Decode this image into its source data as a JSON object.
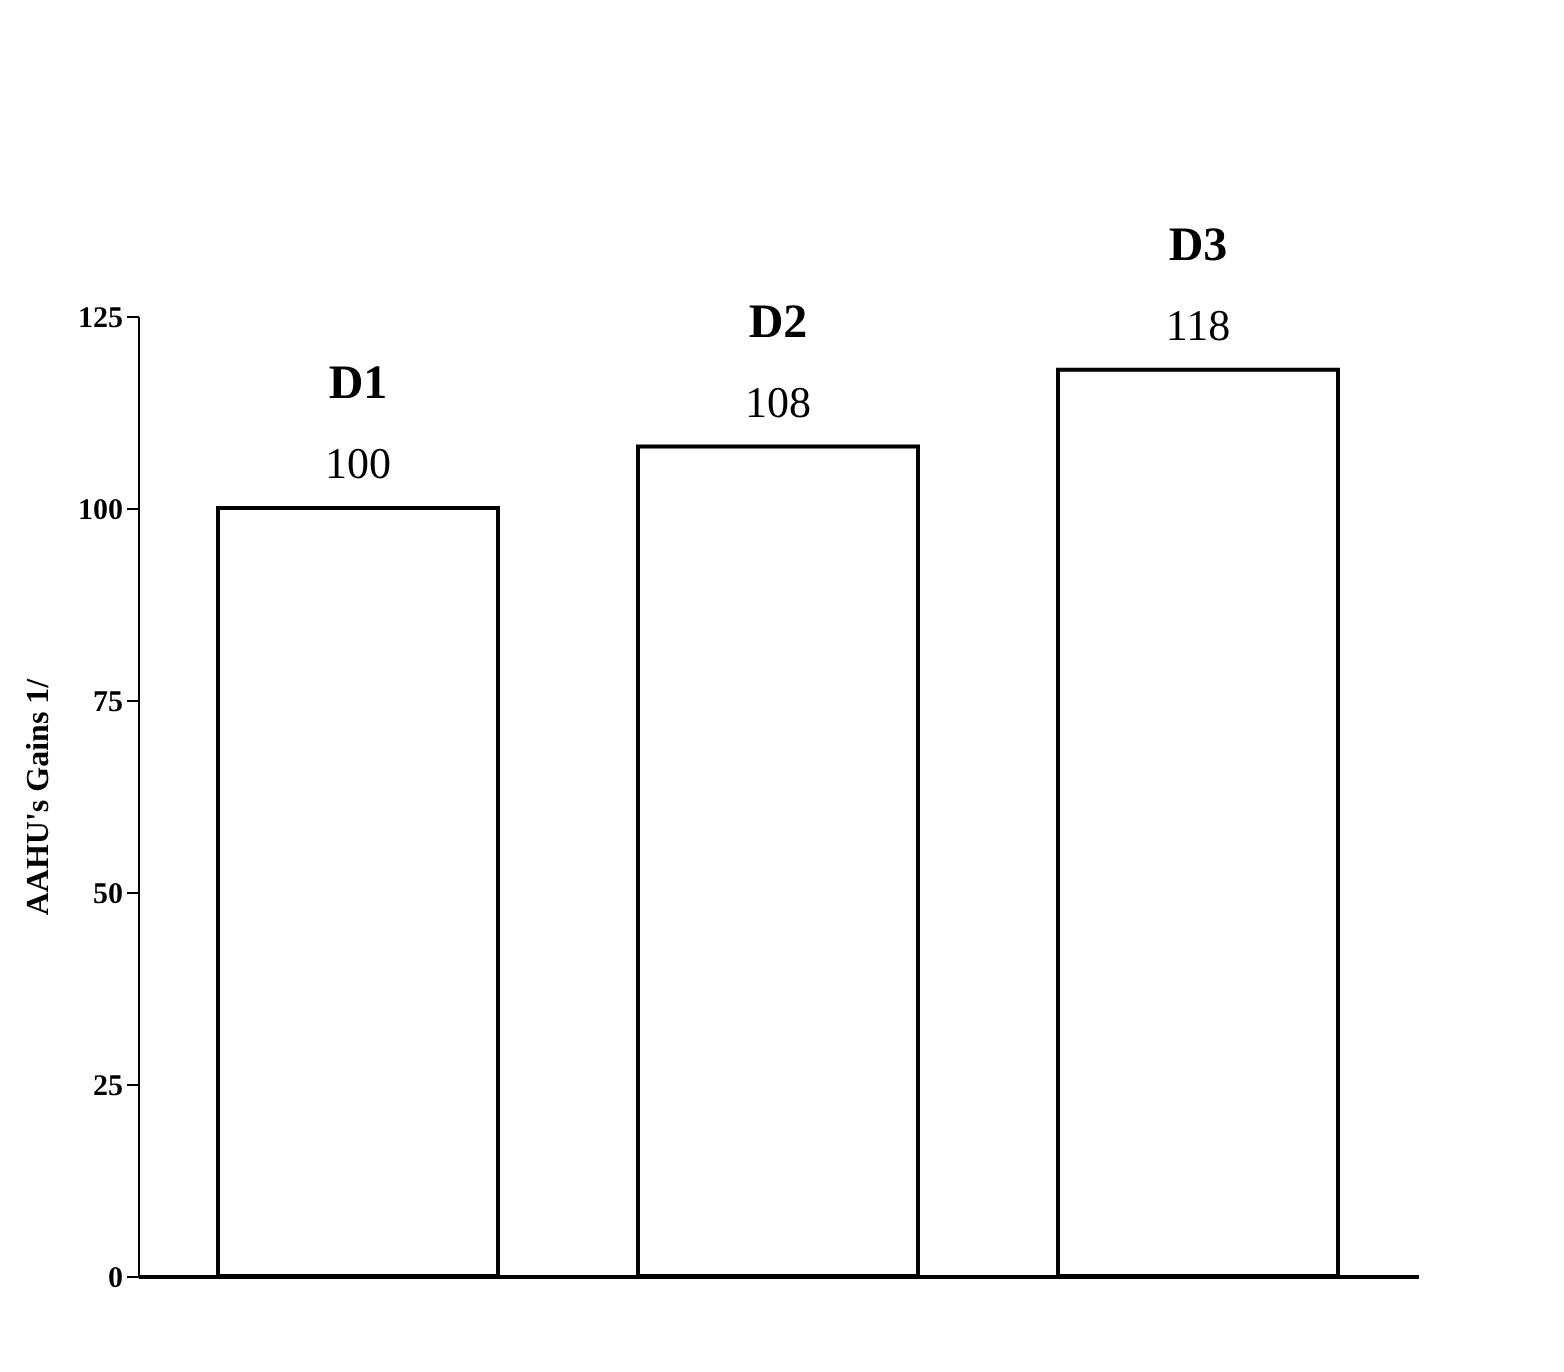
{
  "chart_data": {
    "type": "bar",
    "ylabel": "AAHU's Gains  1/",
    "categories": [
      "D1",
      "D2",
      "D3"
    ],
    "values": [
      100,
      108,
      118
    ],
    "color": "#ffffff",
    "ylim": [
      0,
      125
    ],
    "yticks": [
      0,
      25,
      50,
      75,
      100,
      125
    ],
    "data_labels": true,
    "tick_labels": "y"
  }
}
